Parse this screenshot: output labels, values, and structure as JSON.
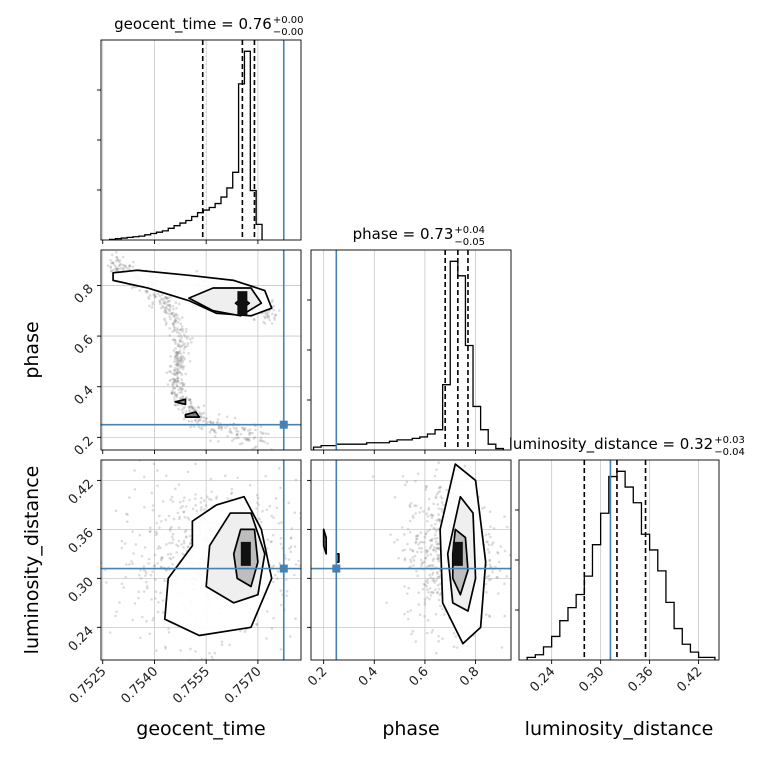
{
  "chart_data": {
    "type": "corner",
    "parameters": [
      "geocent_time",
      "phase",
      "luminosity_distance"
    ],
    "colors": {
      "truth": "#4682b4",
      "hist": "#000000",
      "grid": "#c8c8c8",
      "points": "#808080"
    },
    "grid": true,
    "axes": {
      "geocent_time": {
        "range": [
          0.75245,
          0.75825
        ],
        "ticks": [
          0.7525,
          0.754,
          0.7555,
          0.757
        ],
        "tick_labels": [
          "0.7525",
          "0.7540",
          "0.7555",
          "0.7570"
        ]
      },
      "phase": {
        "range": [
          0.15,
          0.94
        ],
        "ticks": [
          0.2,
          0.4,
          0.6,
          0.8
        ],
        "tick_labels": [
          "0.2",
          "0.4",
          "0.6",
          "0.8"
        ]
      },
      "luminosity_distance": {
        "range": [
          0.2,
          0.445
        ],
        "ticks": [
          0.24,
          0.3,
          0.36,
          0.42
        ],
        "tick_labels": [
          "0.24",
          "0.30",
          "0.36",
          "0.42"
        ]
      }
    },
    "titles": [
      {
        "param": "geocent_time",
        "label": "geocent_time = 0.76",
        "plus": "+0.00",
        "minus": "−0.00"
      },
      {
        "param": "phase",
        "label": "phase = 0.73",
        "plus": "+0.04",
        "minus": "−0.05"
      },
      {
        "param": "luminosity_distance",
        "label": "luminosity_distance = 0.32",
        "plus": "+0.03",
        "minus": "−0.04"
      }
    ],
    "truths": {
      "geocent_time": 0.75775,
      "phase": 0.25,
      "luminosity_distance": 0.312
    },
    "quantiles": {
      "geocent_time": [
        0.7554,
        0.75655,
        0.7569
      ],
      "phase": [
        0.68,
        0.73,
        0.77
      ],
      "luminosity_distance": [
        0.28,
        0.32,
        0.355
      ]
    },
    "histograms": {
      "geocent_time": {
        "edges": [
          0.7527,
          0.75287,
          0.75304,
          0.75321,
          0.75338,
          0.75355,
          0.75372,
          0.75389,
          0.75406,
          0.75423,
          0.7544,
          0.75457,
          0.75474,
          0.75491,
          0.75508,
          0.75525,
          0.75542,
          0.75559,
          0.75576,
          0.75593,
          0.7561,
          0.75627,
          0.75644,
          0.75661,
          0.75678,
          0.75695,
          0.75712
        ],
        "counts": [
          0.5,
          1,
          1.5,
          2,
          2.5,
          3,
          4,
          5,
          6,
          7,
          9,
          11,
          13,
          15,
          18,
          21,
          23,
          25,
          28,
          33,
          40,
          52,
          120,
          145,
          38,
          12
        ]
      },
      "phase": {
        "edges": [
          0.16,
          0.19,
          0.22,
          0.25,
          0.28,
          0.31,
          0.34,
          0.37,
          0.4,
          0.43,
          0.46,
          0.49,
          0.52,
          0.55,
          0.58,
          0.61,
          0.64,
          0.67,
          0.7,
          0.73,
          0.76,
          0.79,
          0.82,
          0.85,
          0.88,
          0.91
        ],
        "counts": [
          2,
          3,
          3,
          4,
          4,
          4,
          4,
          5,
          5,
          5,
          6,
          7,
          7,
          8,
          9,
          11,
          14,
          45,
          130,
          120,
          72,
          30,
          14,
          4,
          1
        ]
      },
      "luminosity_distance": {
        "edges": [
          0.21,
          0.22,
          0.23,
          0.24,
          0.25,
          0.26,
          0.27,
          0.28,
          0.29,
          0.3,
          0.31,
          0.32,
          0.33,
          0.34,
          0.35,
          0.36,
          0.37,
          0.38,
          0.39,
          0.4,
          0.41,
          0.42,
          0.43,
          0.44
        ],
        "counts": [
          1,
          2,
          5,
          9,
          15,
          20,
          25,
          32,
          44,
          56,
          70,
          72,
          66,
          60,
          48,
          42,
          34,
          22,
          12,
          6,
          3,
          1,
          1
        ]
      }
    },
    "panels": {
      "phase_vs_geocent_time": {
        "contours": [
          [
            [
              0.7528,
              0.85
            ],
            [
              0.7535,
              0.86
            ],
            [
              0.755,
              0.84
            ],
            [
              0.7563,
              0.82
            ],
            [
              0.7572,
              0.78
            ],
            [
              0.7574,
              0.71
            ],
            [
              0.7568,
              0.68
            ],
            [
              0.7558,
              0.69
            ],
            [
              0.755,
              0.74
            ],
            [
              0.7538,
              0.79
            ],
            [
              0.7528,
              0.82
            ],
            [
              0.7528,
              0.85
            ]
          ],
          [
            [
              0.7557,
              0.79
            ],
            [
              0.7568,
              0.79
            ],
            [
              0.7571,
              0.73
            ],
            [
              0.7565,
              0.68
            ],
            [
              0.7557,
              0.7
            ],
            [
              0.755,
              0.75
            ],
            [
              0.7557,
              0.79
            ]
          ],
          [
            [
              0.75635,
              0.73
            ],
            [
              0.75655,
              0.75
            ],
            [
              0.75675,
              0.73
            ],
            [
              0.75655,
              0.71
            ],
            [
              0.75635,
              0.73
            ]
          ],
          [
            [
              0.7546,
              0.34
            ],
            [
              0.7549,
              0.35
            ],
            [
              0.7549,
              0.33
            ],
            [
              0.7546,
              0.34
            ]
          ],
          [
            [
              0.7549,
              0.28
            ],
            [
              0.7553,
              0.28
            ],
            [
              0.7552,
              0.3
            ],
            [
              0.7549,
              0.29
            ],
            [
              0.7549,
              0.28
            ]
          ]
        ],
        "density_peaks": [
          {
            "x": 0.75655,
            "y": 0.73
          }
        ],
        "scatter_tracks": [
          [
            [
              0.7527,
              0.9
            ],
            [
              0.7533,
              0.85
            ],
            [
              0.754,
              0.78
            ],
            [
              0.7545,
              0.7
            ],
            [
              0.7548,
              0.6
            ],
            [
              0.7547,
              0.5
            ],
            [
              0.7546,
              0.42
            ],
            [
              0.7548,
              0.34
            ],
            [
              0.7552,
              0.28
            ],
            [
              0.7562,
              0.23
            ],
            [
              0.7572,
              0.2
            ]
          ],
          [
            [
              0.7552,
              0.8
            ],
            [
              0.7562,
              0.75
            ],
            [
              0.757,
              0.72
            ],
            [
              0.7575,
              0.68
            ]
          ]
        ]
      },
      "luminosity_distance_vs_geocent_time": {
        "contours": [
          [
            [
              0.7551,
              0.37
            ],
            [
              0.7558,
              0.39
            ],
            [
              0.7566,
              0.4
            ],
            [
              0.7571,
              0.36
            ],
            [
              0.7574,
              0.3
            ],
            [
              0.7568,
              0.24
            ],
            [
              0.7553,
              0.23
            ],
            [
              0.7543,
              0.25
            ],
            [
              0.7544,
              0.3
            ],
            [
              0.7551,
              0.34
            ],
            [
              0.7551,
              0.37
            ]
          ],
          [
            [
              0.7562,
              0.38
            ],
            [
              0.7568,
              0.38
            ],
            [
              0.7572,
              0.33
            ],
            [
              0.757,
              0.28
            ],
            [
              0.7563,
              0.27
            ],
            [
              0.7555,
              0.29
            ],
            [
              0.7556,
              0.34
            ],
            [
              0.7562,
              0.38
            ]
          ],
          [
            [
              0.7565,
              0.36
            ],
            [
              0.7569,
              0.36
            ],
            [
              0.757,
              0.32
            ],
            [
              0.7568,
              0.29
            ],
            [
              0.7564,
              0.3
            ],
            [
              0.7563,
              0.33
            ],
            [
              0.7565,
              0.36
            ]
          ]
        ],
        "density_peaks": [
          {
            "x": 0.75665,
            "y": 0.33
          }
        ],
        "scatter_center": [
          0.7555,
          0.32
        ],
        "scatter_spread": [
          0.0013,
          0.05
        ]
      },
      "luminosity_distance_vs_phase": {
        "contours": [
          [
            [
              0.72,
              0.44
            ],
            [
              0.8,
              0.42
            ],
            [
              0.84,
              0.32
            ],
            [
              0.82,
              0.24
            ],
            [
              0.75,
              0.22
            ],
            [
              0.67,
              0.27
            ],
            [
              0.66,
              0.36
            ],
            [
              0.72,
              0.44
            ]
          ],
          [
            [
              0.74,
              0.4
            ],
            [
              0.79,
              0.38
            ],
            [
              0.8,
              0.3
            ],
            [
              0.77,
              0.26
            ],
            [
              0.71,
              0.27
            ],
            [
              0.69,
              0.33
            ],
            [
              0.74,
              0.4
            ]
          ],
          [
            [
              0.72,
              0.36
            ],
            [
              0.76,
              0.35
            ],
            [
              0.77,
              0.31
            ],
            [
              0.74,
              0.28
            ],
            [
              0.71,
              0.3
            ],
            [
              0.71,
              0.33
            ],
            [
              0.72,
              0.36
            ]
          ],
          [
            [
              0.2,
              0.36
            ],
            [
              0.21,
              0.35
            ],
            [
              0.21,
              0.33
            ],
            [
              0.2,
              0.34
            ],
            [
              0.2,
              0.36
            ]
          ],
          [
            [
              0.25,
              0.33
            ],
            [
              0.26,
              0.33
            ],
            [
              0.26,
              0.32
            ],
            [
              0.25,
              0.32
            ],
            [
              0.25,
              0.33
            ]
          ]
        ],
        "density_peaks": [
          {
            "x": 0.73,
            "y": 0.33
          }
        ],
        "scatter_center": [
          0.7,
          0.33
        ],
        "scatter_spread": [
          0.09,
          0.045
        ]
      }
    }
  }
}
